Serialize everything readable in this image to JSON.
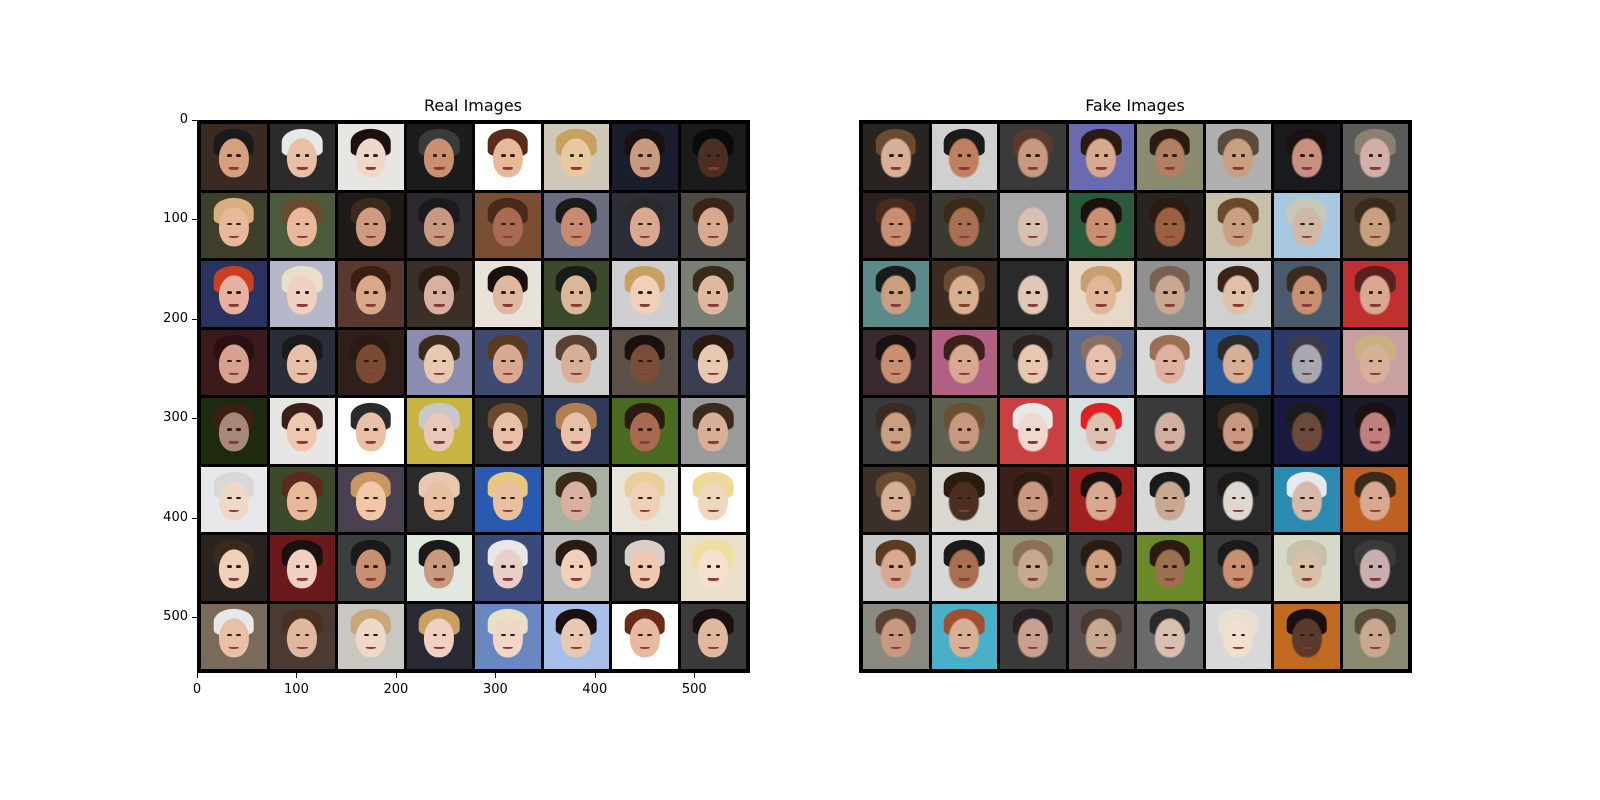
{
  "panels": {
    "real": {
      "title": "Real Images"
    },
    "fake": {
      "title": "Fake Images"
    }
  },
  "axes": {
    "real_y_ticks": [
      "0",
      "100",
      "200",
      "300",
      "400",
      "500"
    ],
    "real_x_ticks": [
      "0",
      "100",
      "200",
      "300",
      "400",
      "500"
    ],
    "tick_values": [
      0,
      100,
      200,
      300,
      400,
      500
    ],
    "extent": 556
  },
  "grid": {
    "rows": 8,
    "cols": 8
  },
  "colors": {
    "real_backgrounds": [
      "#3a2a22",
      "#2b2b2b",
      "#e8e6e2",
      "#1c1c1c",
      "#ffffff",
      "#cfc7b8",
      "#1a1e2c",
      "#1a1a1a",
      "#3d3f2a",
      "#4a5a3a",
      "#1f1a18",
      "#2a2a2e",
      "#7a4e33",
      "#6a6e80",
      "#2b2e38",
      "#4d4a45",
      "#2a3260",
      "#b4b8c8",
      "#5a3a30",
      "#3a3028",
      "#e9e2d8",
      "#3a4a2a",
      "#cfcfd2",
      "#7a7f76",
      "#3a1a1a",
      "#2a2e3a",
      "#2e1f1a",
      "#8a8cb0",
      "#404a70",
      "#cfcfcf",
      "#5a5048",
      "#3a3e50",
      "#1e2a10",
      "#e8e6e4",
      "#ffffff",
      "#c8b440",
      "#2a2a2a",
      "#2e3a58",
      "#4a6a20",
      "#9a9a9a",
      "#e8e8ea",
      "#3a4a2a",
      "#4a4050",
      "#2a2a2a",
      "#2a5ab0",
      "#a8b0a0",
      "#e8e4d8",
      "#ffffff",
      "#2a2420",
      "#6a1a1a",
      "#3a3e3e",
      "#e0e8e0",
      "#3a4a7a",
      "#b8b8b8",
      "#2a2a2a",
      "#e8e0c8",
      "#7a6a5a",
      "#4a3a32",
      "#c8c8c0",
      "#2a2a34",
      "#6a88c0",
      "#a8c0e8",
      "#ffffff",
      "#3a3a3a"
    ],
    "real_skins": [
      "#d4a080",
      "#e8c0a8",
      "#f0d8c8",
      "#c89070",
      "#e8b89a",
      "#e8c8a0",
      "#c89a80",
      "#4a2e22",
      "#e8b89a",
      "#e8b898",
      "#d09a80",
      "#c89880",
      "#a86a50",
      "#c88a70",
      "#d8a890",
      "#d8a890",
      "#e8b0a0",
      "#f0d0c0",
      "#d8a888",
      "#d8b0a0",
      "#e0b8a0",
      "#d8b898",
      "#f0d0b8",
      "#e0b8a0",
      "#d8a090",
      "#e8c0a8",
      "#7a4a32",
      "#e8c8b0",
      "#d8a890",
      "#d8b098",
      "#7a4e36",
      "#e8c8b0",
      "#a8887a",
      "#f0c8b0",
      "#e8c0a8",
      "#e8c8b8",
      "#e8c0a8",
      "#e8c0a8",
      "#a86a50",
      "#d8b098",
      "#f0d8c8",
      "#e8b898",
      "#f0c8a8",
      "#e8c0a0",
      "#e8c0a0",
      "#d8b0a0",
      "#f0d0b8",
      "#f0d8c0",
      "#f0d0b8",
      "#f0d0c0",
      "#c89070",
      "#c89a80",
      "#e8d0c8",
      "#f0d0b8",
      "#f0c8b0",
      "#f8e0d0",
      "#e8c0a8",
      "#e0b8a0",
      "#f0d8c8",
      "#f0d0c0",
      "#f0d8c8",
      "#e8c8b0",
      "#e8b8a0",
      "#e0b8a0"
    ],
    "real_hairs": [
      "#1a1a1a",
      "#e8e8e8",
      "#1a1010",
      "#3a3a3a",
      "#5a2a1a",
      "#c8a060",
      "#1a1010",
      "#0a0a0a",
      "#d8b080",
      "#6a4a30",
      "#3a2a1a",
      "#1a1a1a",
      "#4a2a1a",
      "#1a1a1a",
      "#2a2a2a",
      "#3a2418",
      "#c84020",
      "#e8e0c8",
      "#3a2010",
      "#2a1a10",
      "#1a1010",
      "#1a1a1a",
      "#c8a060",
      "#3a2a1a",
      "#2a1010",
      "#1a1a1a",
      "#2a1a10",
      "#3a2a1a",
      "#5a3a20",
      "#5a4030",
      "#1a1010",
      "#2a1a10",
      "#3a2010",
      "#3a2018",
      "#2a2a2a",
      "#c8c8c8",
      "#6a4a2a",
      "#b08050",
      "#2a1a10",
      "#3a2a1a",
      "#d8d8d8",
      "#5a2a1a",
      "#c89860",
      "#e8c8b0",
      "#e8c880",
      "#3a2a1a",
      "#e8d098",
      "#f0d898",
      "#3a2a1a",
      "#1a1010",
      "#1a1a1a",
      "#1a1a1a",
      "#e8e8e8",
      "#2a1a10",
      "#d8d0c8",
      "#f0e0a0",
      "#e8e8e8",
      "#4a3020",
      "#c8a878",
      "#c8a060",
      "#e8e0c8",
      "#1a1010",
      "#6a2a1a",
      "#1a1010"
    ],
    "fake_backgrounds": [
      "#2a2420",
      "#d0d0d0",
      "#3a3a3a",
      "#6a6ab0",
      "#8a8a70",
      "#b0b0b0",
      "#1a1a1e",
      "#5a5a58",
      "#2a2020",
      "#3a3a30",
      "#a8a8a8",
      "#2a5a3a",
      "#2a2420",
      "#c8c0a8",
      "#a8c8e0",
      "#4a4030",
      "#5a8a8a",
      "#3a2a20",
      "#2a2a2a",
      "#e8d8c8",
      "#909090",
      "#d0d0d0",
      "#4a5a6a",
      "#c03030",
      "#3a2a30",
      "#b06080",
      "#3a3a3a",
      "#5a6a90",
      "#d8d8d8",
      "#2a5a9a",
      "#2a3a6a",
      "#c8a0a0",
      "#3a3a3a",
      "#606050",
      "#c84040",
      "#d8e0e0",
      "#3a3a3a",
      "#1a1a1a",
      "#1a1a40",
      "#1a1a2a",
      "#3a3028",
      "#d8d8d0",
      "#3a2018",
      "#a02020",
      "#d8d8d8",
      "#2a2a2a",
      "#2a8ab0",
      "#c06020",
      "#c8c8c8",
      "#d8d8d8",
      "#9a9a78",
      "#3a3a3a",
      "#6a8a2a",
      "#3a3a3a",
      "#d8d8c8",
      "#2a2a2a",
      "#8a8a80",
      "#4ab0c8",
      "#3a3a3a",
      "#5a5050",
      "#6a6a6a",
      "#d8d8d8",
      "#c06a20",
      "#8a8a70"
    ],
    "fake_skins": [
      "#d8b098",
      "#c08060",
      "#c89880",
      "#d8a890",
      "#b08060",
      "#c8a080",
      "#c89080",
      "#d0b0a8",
      "#c89070",
      "#a87050",
      "#d8c0b0",
      "#c89070",
      "#9a6040",
      "#c8a080",
      "#d0b8a8",
      "#c8a080",
      "#c8a080",
      "#d8b090",
      "#e0c8b8",
      "#e0b898",
      "#c8a890",
      "#e0c0a8",
      "#c89070",
      "#d8a890",
      "#c89070",
      "#d8a890",
      "#e8c8b0",
      "#e8c0b0",
      "#e0b0a0",
      "#d8b098",
      "#a8a8b0",
      "#d8b098",
      "#c8a080",
      "#c89880",
      "#f0d8d0",
      "#e0c0b0",
      "#d0b0a0",
      "#c89880",
      "#6a4a3a",
      "#c08080",
      "#d8b098",
      "#4a2e20",
      "#c89880",
      "#d8a890",
      "#c8a890",
      "#e0d8d0",
      "#d8b8a8",
      "#d8a890",
      "#d8a890",
      "#a87050",
      "#c8a890",
      "#d0a080",
      "#9a7050",
      "#c89070",
      "#d8c0a8",
      "#c8b0b0",
      "#c89880",
      "#d8b098",
      "#c8a090",
      "#c8a890",
      "#d8c0b0",
      "#f0e0d0",
      "#5a3a2a",
      "#c8a890"
    ],
    "fake_hairs": [
      "#6a4a30",
      "#1a1a1a",
      "#5a3a2a",
      "#2a1a10",
      "#2a1a10",
      "#5a4a3a",
      "#1a1010",
      "#8a8070",
      "#4a2a1a",
      "#3a2a18",
      "#a8a8a8",
      "#1a1010",
      "#2a1a10",
      "#6a4a2a",
      "#c8c8b8",
      "#3a2a1a",
      "#1a1a1a",
      "#6a4a30",
      "#2a2a2a",
      "#c8a070",
      "#7a6050",
      "#3a2418",
      "#3a2a20",
      "#5a2020",
      "#1a1010",
      "#3a2018",
      "#2a2020",
      "#8a7060",
      "#9a7050",
      "#2a2a2a",
      "#3a3a4a",
      "#c8b080",
      "#3a2a20",
      "#6a5030",
      "#e8e8e8",
      "#e02020",
      "#3a3a3a",
      "#3a2a1a",
      "#1a1a1a",
      "#1a1010",
      "#6a4a30",
      "#2a1a10",
      "#2a1a10",
      "#1a1010",
      "#1a1a1a",
      "#1a1a1a",
      "#e8e8f0",
      "#3a2a1a",
      "#5a3a20",
      "#1a1a1a",
      "#8a7058",
      "#2a1a10",
      "#2a1a10",
      "#1a1a1a",
      "#c8c0a8",
      "#3a3a3a",
      "#5a4030",
      "#a05030",
      "#2a2020",
      "#4a3a30",
      "#2a2a2a",
      "#e8e0d0",
      "#1a1010",
      "#5a4a3a"
    ]
  }
}
